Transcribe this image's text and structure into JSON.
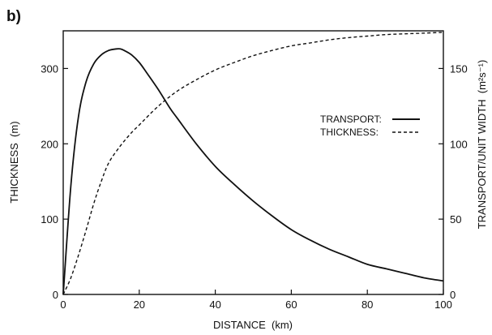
{
  "chart_data": {
    "type": "line",
    "panel_label": "b)",
    "xlabel": "DISTANCE  (km)",
    "ylabel_left": "THICKNESS  (m)",
    "ylabel_right": "TRANSPORT/UNIT WIDTH  (m²s⁻¹)",
    "xlim": [
      0,
      100
    ],
    "ylim_left": [
      0,
      350
    ],
    "ylim_right": [
      0,
      175
    ],
    "x_ticks": [
      0,
      20,
      40,
      60,
      80,
      100
    ],
    "y_ticks_left": [
      0,
      100,
      200,
      300
    ],
    "y_ticks_right": [
      0,
      50,
      100,
      150
    ],
    "grid": false,
    "legend_position": "center-right",
    "series": [
      {
        "name": "TRANSPORT:",
        "axis": "right",
        "style": "solid",
        "x": [
          0,
          2,
          4,
          6,
          8,
          10,
          12,
          14,
          15,
          16,
          18,
          20,
          22,
          25,
          28,
          30,
          35,
          40,
          45,
          50,
          55,
          60,
          65,
          70,
          75,
          80,
          85,
          90,
          95,
          100
        ],
        "y": [
          0,
          72,
          118,
          141,
          153,
          159,
          162,
          163,
          163,
          162,
          159,
          154,
          147,
          136,
          124,
          117,
          100,
          85,
          73,
          62,
          52,
          43,
          36,
          30,
          25,
          20,
          17,
          14,
          11,
          9
        ]
      },
      {
        "name": "THICKNESS:",
        "axis": "left",
        "style": "dashed",
        "x": [
          0,
          2,
          4,
          6,
          8,
          10,
          12,
          15,
          18,
          20,
          25,
          30,
          35,
          40,
          45,
          50,
          55,
          60,
          65,
          70,
          75,
          80,
          85,
          90,
          95,
          100
        ],
        "y": [
          0,
          22,
          52,
          85,
          120,
          150,
          175,
          197,
          215,
          225,
          250,
          270,
          285,
          298,
          308,
          317,
          324,
          330,
          334,
          338,
          341,
          343,
          345,
          346,
          347,
          348
        ]
      }
    ]
  }
}
